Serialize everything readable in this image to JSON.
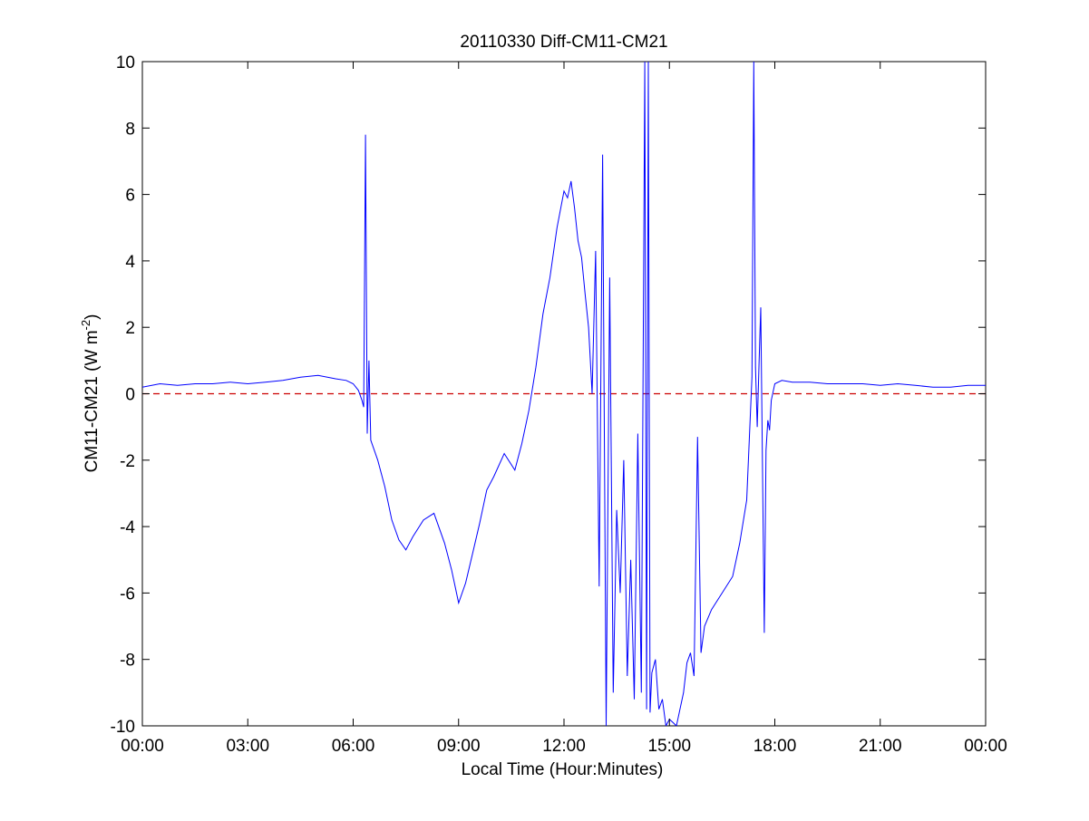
{
  "chart_data": {
    "type": "line",
    "title": "20110330 Diff-CM11-CM21",
    "xlabel": "Local Time (Hour:Minutes)",
    "ylabel": {
      "prefix": "CM11-CM21 (W m",
      "superscript": "-2",
      "suffix": ")"
    },
    "xlim": [
      0,
      24
    ],
    "ylim": [
      -10,
      10
    ],
    "x_ticks": [
      0,
      3,
      6,
      9,
      12,
      15,
      18,
      21,
      24
    ],
    "x_tick_labels": [
      "00:00",
      "03:00",
      "06:00",
      "09:00",
      "12:00",
      "15:00",
      "18:00",
      "21:00",
      "00:00"
    ],
    "y_ticks": [
      -10,
      -8,
      -6,
      -4,
      -2,
      0,
      2,
      4,
      6,
      8,
      10
    ],
    "y_tick_labels": [
      "-10",
      "-8",
      "-6",
      "-4",
      "-2",
      "0",
      "2",
      "4",
      "6",
      "8",
      "10"
    ],
    "grid": false,
    "reference_line": {
      "y": 0,
      "color": "#cc0000",
      "style": "dashed"
    },
    "series": [
      {
        "color": "#0000ff",
        "x": [
          0,
          0.5,
          1.0,
          1.5,
          2.0,
          2.5,
          3.0,
          3.5,
          4.0,
          4.5,
          5.0,
          5.5,
          5.8,
          6.0,
          6.15,
          6.25,
          6.3,
          6.35,
          6.4,
          6.45,
          6.5,
          6.7,
          6.9,
          7.1,
          7.3,
          7.5,
          7.7,
          8.0,
          8.3,
          8.6,
          8.8,
          9.0,
          9.2,
          9.4,
          9.6,
          9.8,
          10.0,
          10.3,
          10.6,
          10.8,
          11.0,
          11.2,
          11.4,
          11.6,
          11.8,
          12.0,
          12.1,
          12.2,
          12.3,
          12.4,
          12.5,
          12.6,
          12.7,
          12.8,
          12.9,
          13.0,
          13.1,
          13.2,
          13.3,
          13.4,
          13.5,
          13.6,
          13.7,
          13.8,
          13.9,
          14.0,
          14.1,
          14.2,
          14.3,
          14.35,
          14.4,
          14.45,
          14.5,
          14.6,
          14.7,
          14.8,
          14.9,
          15.0,
          15.1,
          15.2,
          15.3,
          15.4,
          15.5,
          15.6,
          15.7,
          15.8,
          15.9,
          16.0,
          16.2,
          16.5,
          16.8,
          17.0,
          17.2,
          17.35,
          17.4,
          17.45,
          17.5,
          17.55,
          17.6,
          17.7,
          17.75,
          17.8,
          17.85,
          17.9,
          18.0,
          18.2,
          18.5,
          19.0,
          19.5,
          20.0,
          20.5,
          21.0,
          21.5,
          22.0,
          22.5,
          23.0,
          23.5,
          24.0
        ],
        "y": [
          0.2,
          0.3,
          0.25,
          0.3,
          0.3,
          0.35,
          0.3,
          0.35,
          0.4,
          0.5,
          0.55,
          0.45,
          0.4,
          0.3,
          0.1,
          -0.2,
          -0.4,
          7.8,
          -1.2,
          1.0,
          -1.4,
          -2.0,
          -2.8,
          -3.8,
          -4.4,
          -4.7,
          -4.3,
          -3.8,
          -3.6,
          -4.5,
          -5.3,
          -6.3,
          -5.7,
          -4.8,
          -3.9,
          -2.9,
          -2.5,
          -1.8,
          -2.3,
          -1.5,
          -0.5,
          0.8,
          2.4,
          3.5,
          5.0,
          6.1,
          5.9,
          6.4,
          5.6,
          4.6,
          4.1,
          3.0,
          2.0,
          0.0,
          4.3,
          -5.8,
          7.2,
          -10.0,
          3.5,
          -9.0,
          -3.5,
          -6.0,
          -2.0,
          -8.5,
          -5.0,
          -9.2,
          -1.2,
          -9.0,
          10.0,
          -9.5,
          10.0,
          -9.6,
          -8.4,
          -8.0,
          -9.5,
          -9.2,
          -10.0,
          -9.8,
          -9.9,
          -10.0,
          -9.5,
          -9.0,
          -8.1,
          -7.8,
          -8.5,
          -1.3,
          -7.8,
          -7.0,
          -6.5,
          -6.0,
          -5.5,
          -4.5,
          -3.2,
          0.5,
          10.0,
          0.8,
          -1.0,
          0.9,
          2.6,
          -7.2,
          -1.7,
          -0.8,
          -1.1,
          -0.2,
          0.3,
          0.4,
          0.35,
          0.35,
          0.3,
          0.3,
          0.3,
          0.25,
          0.3,
          0.25,
          0.2,
          0.2,
          0.25,
          0.25
        ]
      }
    ]
  }
}
